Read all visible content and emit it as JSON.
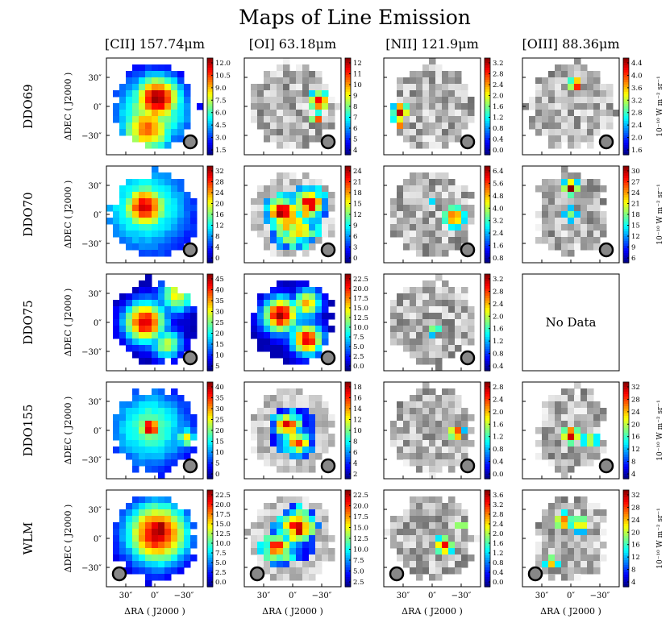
{
  "chart_data": {
    "type": "heatmap",
    "title": "Maps of Line Emission",
    "columns": [
      "[CII] 157.74μm",
      "[OI] 63.18μm",
      "[NII] 121.9μm",
      "[OIII] 88.36μm"
    ],
    "rows": [
      "DDO69",
      "DDO70",
      "DDO75",
      "DDO155",
      "WLM"
    ],
    "xlabel": "ΔRA ( J2000 )",
    "ylabel": "ΔDEC ( J2000 )",
    "x_ticks": [
      "30″",
      "0″",
      "−30″"
    ],
    "y_ticks": [
      "30″",
      "0″",
      "−30″"
    ],
    "colorbar_unit": "10⁻¹⁰ W m⁻² sr⁻¹",
    "no_data_text": "No Data",
    "colormap": [
      "#00007f",
      "#0000ff",
      "#007fff",
      "#00ffff",
      "#7fff7f",
      "#ffff00",
      "#ff7f00",
      "#ff0000",
      "#7f0000"
    ],
    "panels": [
      [
        {
          "ticks": [
            "12.0",
            "10.5",
            "9.0",
            "7.5",
            "6.0",
            "4.5",
            "3.0",
            "1.5"
          ],
          "beam": "lower-right",
          "unit_label": false,
          "fill": "full",
          "blobs": [
            [
              0.05,
              0.15,
              0.34,
              0.95
            ],
            [
              -0.15,
              -0.45,
              0.38,
              0.75
            ],
            [
              -0.05,
              -0.1,
              0.55,
              0.55
            ]
          ]
        },
        {
          "ticks": [
            "12",
            "11",
            "10",
            "9",
            "8",
            "7",
            "6",
            "5",
            "4"
          ],
          "beam": "lower-right",
          "unit_label": false,
          "fill": "sparse",
          "blobs": [
            [
              0.55,
              0.1,
              0.16,
              0.9
            ],
            [
              0.5,
              -0.25,
              0.1,
              0.85
            ]
          ]
        },
        {
          "ticks": [
            "3.2",
            "2.8",
            "2.4",
            "2.0",
            "1.6",
            "1.2",
            "0.8",
            "0.4",
            "0.0"
          ],
          "beam": "lower-right",
          "unit_label": false,
          "fill": "sparse",
          "blobs": [
            [
              -0.65,
              -0.1,
              0.12,
              1.0
            ],
            [
              -0.7,
              -0.35,
              0.1,
              0.9
            ]
          ]
        },
        {
          "ticks": [
            "4.4",
            "4.0",
            "3.6",
            "3.2",
            "2.8",
            "2.4",
            "2.0",
            "1.6"
          ],
          "beam": "lower-right",
          "unit_label": true,
          "fill": "sparse",
          "blobs": [
            [
              0.1,
              0.45,
              0.1,
              1.0
            ]
          ]
        }
      ],
      [
        {
          "ticks": [
            "32",
            "28",
            "24",
            "20",
            "16",
            "12",
            "8",
            "4",
            "0"
          ],
          "beam": "lower-right",
          "unit_label": false,
          "fill": "full",
          "blobs": [
            [
              -0.2,
              0.15,
              0.32,
              0.9
            ],
            [
              -0.2,
              0.15,
              0.7,
              0.45
            ]
          ]
        },
        {
          "ticks": [
            "24",
            "21",
            "18",
            "15",
            "12",
            "9",
            "6",
            "3",
            "0"
          ],
          "beam": "lower-right",
          "unit_label": false,
          "fill": "ring",
          "blobs": [
            [
              -0.2,
              0.05,
              0.2,
              0.9
            ],
            [
              0.35,
              0.2,
              0.22,
              0.8
            ],
            [
              0.05,
              -0.25,
              0.3,
              0.6
            ]
          ]
        },
        {
          "ticks": [
            "6.4",
            "5.6",
            "4.8",
            "4.0",
            "3.2",
            "2.4",
            "1.6",
            "0.8"
          ],
          "beam": "lower-right",
          "unit_label": false,
          "fill": "sparse",
          "blobs": [
            [
              0.45,
              -0.05,
              0.18,
              0.8
            ],
            [
              0.0,
              0.3,
              0.16,
              0.35
            ]
          ]
        },
        {
          "ticks": [
            "30",
            "27",
            "24",
            "21",
            "18",
            "15",
            "12",
            "9",
            "6"
          ],
          "beam": "lower-right",
          "unit_label": true,
          "fill": "column",
          "blobs": [
            [
              0.0,
              0.55,
              0.12,
              1.0
            ],
            [
              0.0,
              0.0,
              0.14,
              0.5
            ]
          ]
        }
      ],
      [
        {
          "ticks": [
            "45",
            "40",
            "35",
            "30",
            "25",
            "20",
            "15",
            "10",
            "5"
          ],
          "beam": "lower-right",
          "unit_label": false,
          "fill": "full",
          "blobs": [
            [
              -0.2,
              0.0,
              0.3,
              0.9
            ],
            [
              0.45,
              0.55,
              0.25,
              0.6
            ],
            [
              0.25,
              -0.45,
              0.22,
              0.55
            ]
          ]
        },
        {
          "ticks": [
            "22.5",
            "20.0",
            "17.5",
            "15.0",
            "12.5",
            "10.0",
            "7.5",
            "5.0",
            "2.5",
            "0.0"
          ],
          "beam": "lower-right",
          "unit_label": false,
          "fill": "full",
          "blobs": [
            [
              -0.25,
              0.15,
              0.25,
              0.95
            ],
            [
              0.3,
              -0.35,
              0.22,
              0.9
            ],
            [
              0.3,
              0.4,
              0.2,
              0.7
            ]
          ]
        },
        {
          "ticks": [
            "3.2",
            "2.8",
            "2.4",
            "2.0",
            "1.6",
            "1.2",
            "0.8",
            "0.4"
          ],
          "beam": "lower-right",
          "unit_label": false,
          "fill": "sparse",
          "blobs": [
            [
              0.05,
              -0.15,
              0.12,
              0.55
            ]
          ]
        },
        null
      ],
      [
        {
          "ticks": [
            "40",
            "35",
            "30",
            "25",
            "20",
            "15",
            "10",
            "5",
            "0"
          ],
          "beam": "lower-right",
          "unit_label": false,
          "fill": "full",
          "blobs": [
            [
              -0.1,
              0.05,
              0.16,
              0.95
            ],
            [
              -0.1,
              0.05,
              0.6,
              0.45
            ],
            [
              0.65,
              -0.15,
              0.14,
              0.6
            ]
          ]
        },
        {
          "ticks": [
            "18",
            "16",
            "14",
            "12",
            "10",
            "8",
            "6",
            "4",
            "2"
          ],
          "beam": "lower-right",
          "unit_label": false,
          "fill": "ring",
          "blobs": [
            [
              -0.1,
              0.1,
              0.16,
              0.9
            ],
            [
              0.1,
              -0.25,
              0.18,
              0.7
            ]
          ]
        },
        {
          "ticks": [
            "2.8",
            "2.4",
            "2.0",
            "1.6",
            "1.2",
            "0.8",
            "0.4",
            "0.0"
          ],
          "beam": "lower-right",
          "unit_label": false,
          "fill": "sparse",
          "blobs": [
            [
              0.5,
              -0.05,
              0.12,
              0.9
            ]
          ]
        },
        {
          "ticks": [
            "32",
            "28",
            "24",
            "20",
            "16",
            "12",
            "8",
            "4"
          ],
          "beam": "lower-right",
          "unit_label": true,
          "fill": "column",
          "blobs": [
            [
              0.0,
              -0.1,
              0.14,
              0.95
            ],
            [
              0.4,
              -0.2,
              0.15,
              0.6
            ]
          ]
        }
      ],
      [
        {
          "ticks": [
            "22.5",
            "20.0",
            "17.5",
            "15.0",
            "12.5",
            "10.0",
            "7.5",
            "5.0",
            "2.5",
            "0.0"
          ],
          "beam": "lower-left",
          "unit_label": false,
          "fill": "full",
          "blobs": [
            [
              0.05,
              0.1,
              0.45,
              0.9
            ],
            [
              0.1,
              0.2,
              0.25,
              0.98
            ]
          ]
        },
        {
          "ticks": [
            "22.5",
            "20.0",
            "17.5",
            "15.0",
            "12.5",
            "10.0",
            "7.5",
            "5.0",
            "2.5"
          ],
          "beam": "lower-left",
          "unit_label": false,
          "fill": "ring",
          "blobs": [
            [
              0.1,
              0.25,
              0.22,
              0.9
            ],
            [
              -0.3,
              -0.2,
              0.2,
              0.8
            ]
          ]
        },
        {
          "ticks": [
            "3.6",
            "3.2",
            "2.8",
            "2.4",
            "2.0",
            "1.6",
            "1.2",
            "0.8",
            "0.4",
            "0.0"
          ],
          "beam": "lower-left",
          "unit_label": false,
          "fill": "sparse",
          "blobs": [
            [
              0.25,
              -0.15,
              0.14,
              0.9
            ],
            [
              0.6,
              0.3,
              0.08,
              0.8
            ]
          ]
        },
        {
          "ticks": [
            "32",
            "28",
            "24",
            "20",
            "16",
            "12",
            "8",
            "4"
          ],
          "beam": "lower-left",
          "unit_label": true,
          "fill": "column",
          "blobs": [
            [
              -0.15,
              0.35,
              0.15,
              0.8
            ],
            [
              0.2,
              0.3,
              0.14,
              0.7
            ],
            [
              -0.4,
              -0.5,
              0.12,
              0.7
            ]
          ]
        }
      ]
    ]
  }
}
